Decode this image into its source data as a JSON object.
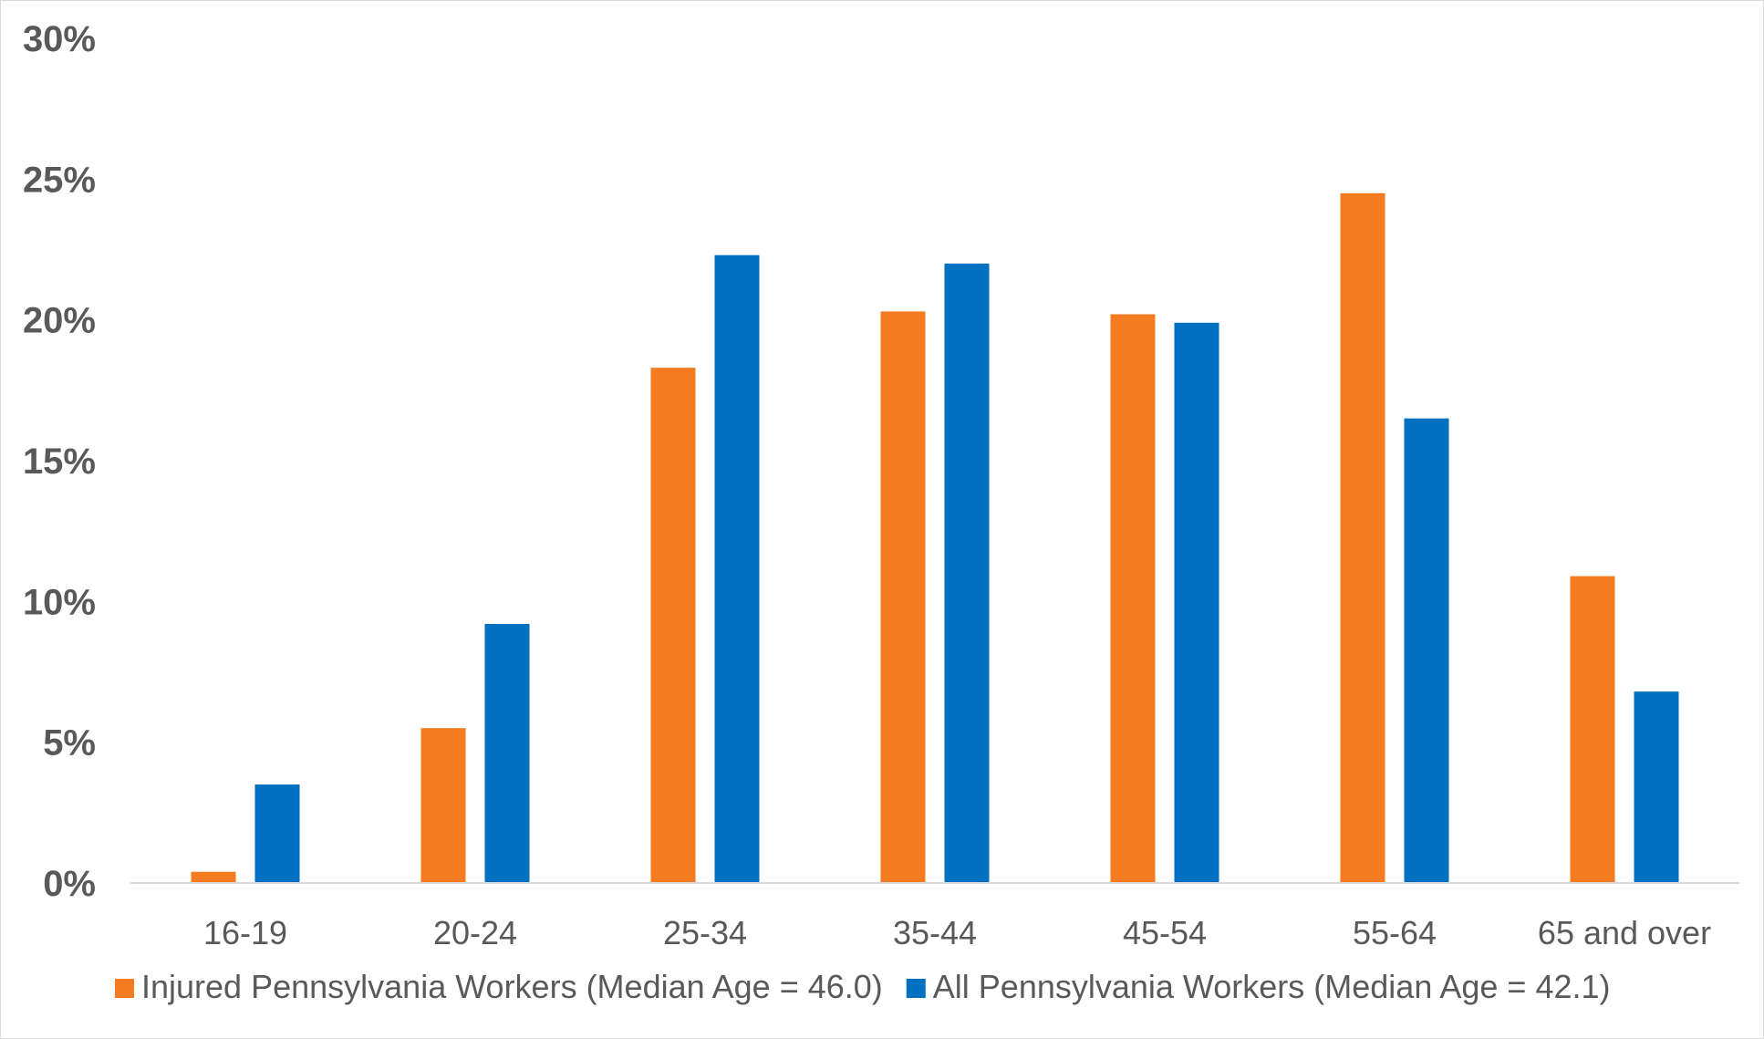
{
  "chart_data": {
    "type": "bar",
    "title": "",
    "xlabel": "",
    "ylabel": "",
    "categories": [
      "16-19",
      "20-24",
      "25-34",
      "35-44",
      "45-54",
      "55-64",
      "65 and over"
    ],
    "series": [
      {
        "name": "Injured Pennsylvania Workers (Median Age = 46.0)",
        "color": "#F47B20",
        "values": [
          0.4,
          5.5,
          18.3,
          20.3,
          20.2,
          24.5,
          10.9
        ]
      },
      {
        "name": "All Pennsylvania Workers (Median Age = 42.1)",
        "color": "#0070C0",
        "values": [
          3.5,
          9.2,
          22.3,
          22.0,
          19.9,
          16.5,
          6.8
        ]
      }
    ],
    "ylim": [
      0,
      30
    ],
    "yticks": [
      0,
      5,
      10,
      15,
      20,
      25,
      30
    ],
    "ytick_labels": [
      "0%",
      "5%",
      "10%",
      "15%",
      "20%",
      "25%",
      "30%"
    ],
    "grid": false,
    "legend_position": "bottom"
  }
}
